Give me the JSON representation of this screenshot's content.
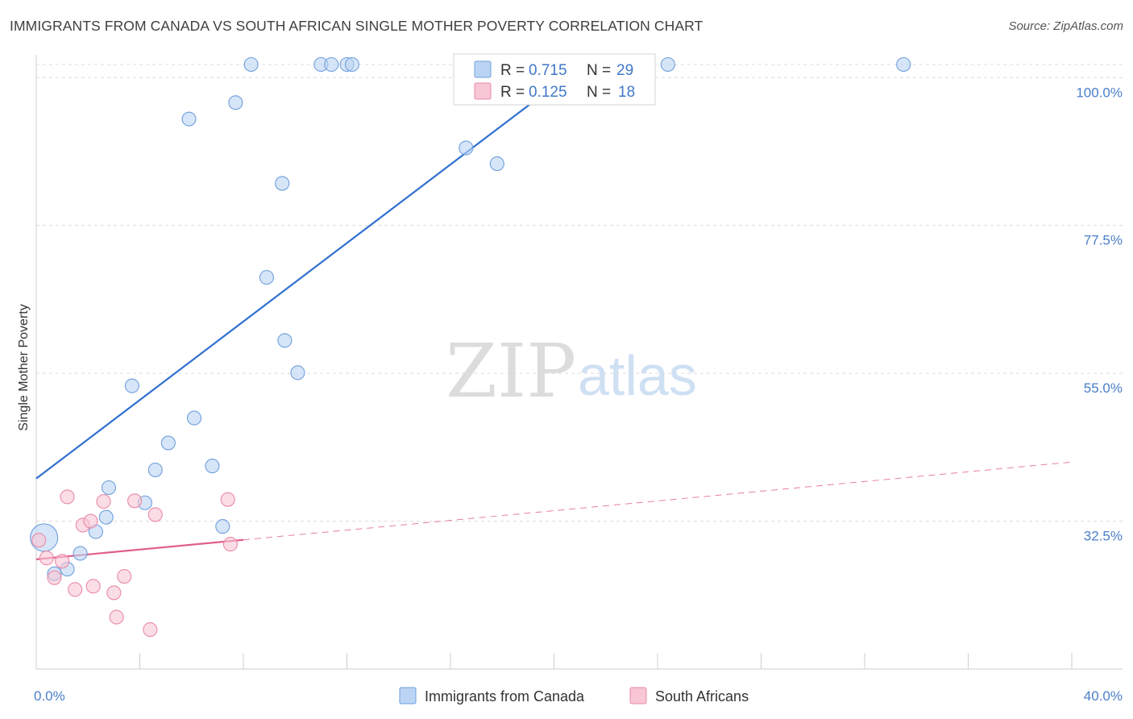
{
  "title": "IMMIGRANTS FROM CANADA VS SOUTH AFRICAN SINGLE MOTHER POVERTY CORRELATION CHART",
  "source": "Source: ZipAtlas.com",
  "watermark": {
    "zip": "ZIP",
    "atlas": "atlas"
  },
  "colors": {
    "blue_fill": "#bcd4f3",
    "blue_stroke": "#6d9fdc",
    "blue_line": "#2f6fd0",
    "pink_fill": "#f8c6d5",
    "pink_stroke": "#e98aa7",
    "pink_line": "#e0608a",
    "grid": "#dcdcdc",
    "tick_text": "#4a7fc9"
  },
  "legend": {
    "r_label": "R =",
    "n_label": "N =",
    "rows": [
      {
        "r": "0.715",
        "n": "29",
        "series": "blue"
      },
      {
        "r": "0.125",
        "n": "18",
        "series": "pink"
      }
    ]
  },
  "chart_data": {
    "type": "scatter",
    "title": "IMMIGRANTS FROM CANADA VS SOUTH AFRICAN SINGLE MOTHER POVERTY CORRELATION CHART",
    "xlabel": "",
    "ylabel": "Single Mother Poverty",
    "xlim": [
      0,
      40
    ],
    "ylim": [
      10,
      102
    ],
    "x_ticks": [
      {
        "value": 0,
        "label": "0.0%"
      },
      {
        "value": 40,
        "label": "40.0%"
      }
    ],
    "y_ticks": [
      {
        "value": 32.5,
        "label": "32.5%"
      },
      {
        "value": 55.0,
        "label": "55.0%"
      },
      {
        "value": 77.5,
        "label": "77.5%"
      },
      {
        "value": 100.0,
        "label": "100.0%"
      }
    ],
    "grid": true,
    "legend_position": "top-center",
    "series": [
      {
        "name": "Immigrants from Canada",
        "color": "blue",
        "r": 0.715,
        "n": 29,
        "trend": {
          "x0": 0,
          "y0": 39.0,
          "x1": 21.1,
          "y1": 102.0
        },
        "points": [
          {
            "x": 0.3,
            "y": 30.0,
            "big": true
          },
          {
            "x": 0.7,
            "y": 24.5
          },
          {
            "x": 1.2,
            "y": 25.2
          },
          {
            "x": 1.7,
            "y": 27.6
          },
          {
            "x": 2.3,
            "y": 30.9
          },
          {
            "x": 2.8,
            "y": 37.6
          },
          {
            "x": 2.7,
            "y": 33.1
          },
          {
            "x": 4.2,
            "y": 35.3
          },
          {
            "x": 4.6,
            "y": 40.3
          },
          {
            "x": 5.1,
            "y": 44.4
          },
          {
            "x": 3.7,
            "y": 53.1
          },
          {
            "x": 6.1,
            "y": 48.2
          },
          {
            "x": 6.8,
            "y": 40.9
          },
          {
            "x": 7.2,
            "y": 31.7
          },
          {
            "x": 5.9,
            "y": 93.7
          },
          {
            "x": 7.7,
            "y": 96.2
          },
          {
            "x": 8.3,
            "y": 102.0
          },
          {
            "x": 8.9,
            "y": 69.6
          },
          {
            "x": 9.5,
            "y": 83.9
          },
          {
            "x": 9.6,
            "y": 60.0
          },
          {
            "x": 10.1,
            "y": 55.1
          },
          {
            "x": 11.0,
            "y": 102.0
          },
          {
            "x": 11.4,
            "y": 102.0
          },
          {
            "x": 12.0,
            "y": 102.0
          },
          {
            "x": 12.2,
            "y": 102.0
          },
          {
            "x": 16.6,
            "y": 89.3
          },
          {
            "x": 17.8,
            "y": 86.9
          },
          {
            "x": 24.4,
            "y": 102.0
          },
          {
            "x": 33.5,
            "y": 102.0
          }
        ]
      },
      {
        "name": "South Africans",
        "color": "pink",
        "r": 0.125,
        "n": 18,
        "trend": {
          "x0": 0,
          "y0": 26.7,
          "x1": 40,
          "y1": 41.5,
          "solid_until": 8.0
        },
        "points": [
          {
            "x": 0.1,
            "y": 29.6
          },
          {
            "x": 0.4,
            "y": 26.9
          },
          {
            "x": 0.7,
            "y": 23.9
          },
          {
            "x": 1.0,
            "y": 26.4
          },
          {
            "x": 1.2,
            "y": 36.2
          },
          {
            "x": 1.5,
            "y": 22.1
          },
          {
            "x": 1.8,
            "y": 31.9
          },
          {
            "x": 2.1,
            "y": 32.5
          },
          {
            "x": 2.2,
            "y": 22.6
          },
          {
            "x": 2.6,
            "y": 35.5
          },
          {
            "x": 3.0,
            "y": 21.6
          },
          {
            "x": 3.1,
            "y": 17.9
          },
          {
            "x": 3.4,
            "y": 24.1
          },
          {
            "x": 3.8,
            "y": 35.6
          },
          {
            "x": 4.4,
            "y": 16.0
          },
          {
            "x": 4.6,
            "y": 33.5
          },
          {
            "x": 7.4,
            "y": 35.8
          },
          {
            "x": 7.5,
            "y": 29.0
          }
        ]
      }
    ]
  }
}
